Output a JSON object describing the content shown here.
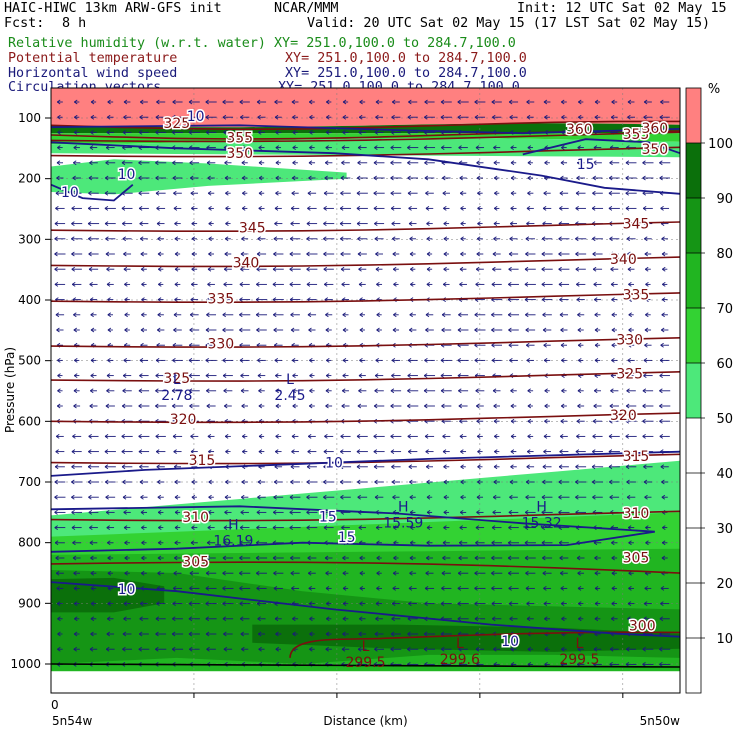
{
  "header": {
    "model": "HAIC-HIWC 13km ARW-GFS init",
    "center": "NCAR/MMM",
    "init": "Init: 12 UTC Sat 02 May 15",
    "fcst_label": "Fcst:",
    "fcst_value": "8 h",
    "valid": "Valid: 20 UTC Sat 02 May 15 (17 LST Sat 02 May 15)",
    "fields": [
      {
        "name": "Relative humidity (w.r.t. water)",
        "xy": "XY= 251.0,100.0 to 284.7,100.0",
        "color": "#1a8c1a"
      },
      {
        "name": "Potential temperature",
        "xy": "XY= 251.0,100.0 to 284.7,100.0",
        "color": "#8b1a1a"
      },
      {
        "name": "Horizontal wind speed",
        "xy": "XY= 251.0,100.0 to 284.7,100.0",
        "color": "#1a1a7a"
      },
      {
        "name": "Circulation vectors",
        "xy": "XY= 251.0,100.0 to 284.7,100.0",
        "color": "#1a1a7a"
      }
    ]
  },
  "chart_data": {
    "type": "heatmap",
    "title": "",
    "xlabel": "Distance (km)",
    "ylabel": "Pressure (hPa)",
    "x_start_label": "5n54w",
    "x_end_label": "5n50w",
    "x_zero_label": "0",
    "y_ticks": [
      100,
      200,
      300,
      400,
      500,
      600,
      700,
      800,
      900,
      1000
    ],
    "ylim": [
      1050,
      70
    ],
    "colorbar": {
      "unit": "%",
      "ticks": [
        10,
        20,
        30,
        40,
        50,
        60,
        70,
        80,
        90,
        100
      ],
      "levels": [
        {
          "from": 50,
          "to": 60,
          "color": "#4de87a"
        },
        {
          "from": 60,
          "to": 70,
          "color": "#33d233"
        },
        {
          "from": 70,
          "to": 80,
          "color": "#21b521"
        },
        {
          "from": 80,
          "to": 90,
          "color": "#159515"
        },
        {
          "from": 90,
          "to": 100,
          "color": "#0b700b"
        },
        {
          "from": 100,
          "to": 110,
          "color": "#ff8080"
        }
      ]
    },
    "theta_contours": [
      {
        "label": "305",
        "p": 835
      },
      {
        "label": "310",
        "p": 762
      },
      {
        "label": "315",
        "p": 668
      },
      {
        "label": "320",
        "p": 600
      },
      {
        "label": "325",
        "p": 532
      },
      {
        "label": "330",
        "p": 476
      },
      {
        "label": "335",
        "p": 402
      },
      {
        "label": "340",
        "p": 343
      },
      {
        "label": "345",
        "p": 285
      },
      {
        "label": "350",
        "p": 162
      },
      {
        "label": "355",
        "p": 137
      },
      {
        "label": "360",
        "p": 128
      },
      {
        "label": "325",
        "p": 112
      }
    ],
    "wind_labels": [
      {
        "label": "10",
        "p": 190
      },
      {
        "label": "10",
        "p": 226
      },
      {
        "label": "15",
        "p": 178
      },
      {
        "label": "10",
        "p": 94
      },
      {
        "label": "10",
        "p": 668
      },
      {
        "label": "15",
        "p": 755
      },
      {
        "label": "15",
        "p": 790
      },
      {
        "label": "10",
        "p": 871
      },
      {
        "label": "10",
        "p": 958
      }
    ],
    "extrema": [
      {
        "kind": "L",
        "value": "2.78",
        "p": 555
      },
      {
        "kind": "L",
        "value": "2.45",
        "p": 555
      },
      {
        "kind": "H",
        "value": "16.19",
        "p": 790
      },
      {
        "kind": "H",
        "value": "15.59",
        "p": 760
      },
      {
        "kind": "H",
        "value": "15.32",
        "p": 760
      },
      {
        "kind": "L",
        "value": "299.5",
        "p": 995
      },
      {
        "kind": "L",
        "value": "299.6",
        "p": 990
      },
      {
        "kind": "L",
        "value": "299.5",
        "p": 990
      }
    ]
  }
}
